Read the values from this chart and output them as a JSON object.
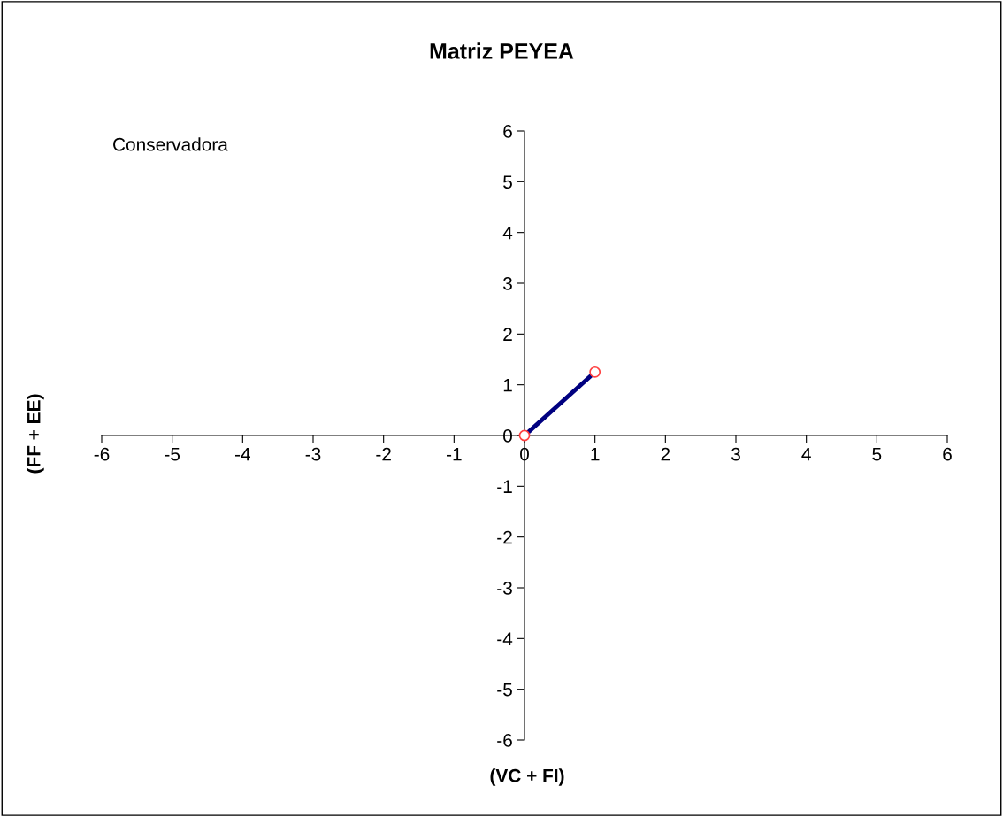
{
  "chart_data": {
    "type": "line",
    "title": "Matriz PEYEA",
    "xlabel": "(VC + FI)",
    "ylabel": "(FF + EE)",
    "annotations": [
      "Conservadora"
    ],
    "x": [
      0,
      1
    ],
    "series": [
      {
        "color": "#000080",
        "values": [
          0,
          1.25
        ]
      }
    ],
    "marker": "circle",
    "line_style": "solid",
    "grid": false,
    "legend": false,
    "xlim": [
      -6,
      6
    ],
    "xticks": [
      -6,
      -5,
      -4,
      -3,
      -2,
      -1,
      0,
      1,
      2,
      3,
      4,
      5,
      6
    ],
    "ylim": [
      -6,
      6
    ],
    "yticks": [
      -6,
      -5,
      -4,
      -3,
      -2,
      -1,
      0,
      1,
      2,
      3,
      4,
      5,
      6
    ]
  }
}
